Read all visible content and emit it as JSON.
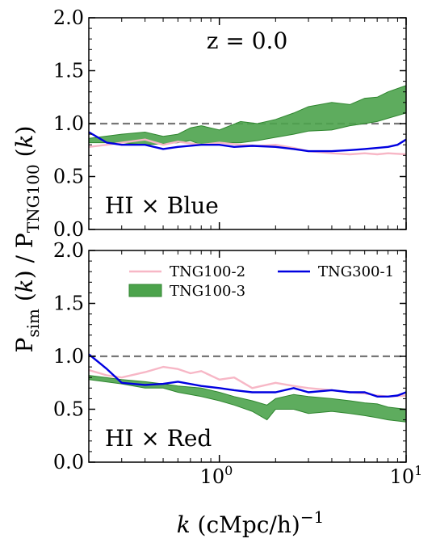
{
  "chart_data": [
    {
      "type": "line",
      "annotation": "z = 0.0",
      "panel_label": "HI × Blue",
      "x_scale": "log",
      "xlim": [
        0.2,
        10
      ],
      "ylim": [
        0,
        2.0
      ],
      "y_ticks": [
        "0.0",
        "0.5",
        "1.0",
        "1.5",
        "2.0"
      ],
      "reference_line": 1.0,
      "series": [
        {
          "name": "TNG100-2",
          "color": "#f7b7c6",
          "x": [
            0.2,
            0.25,
            0.3,
            0.4,
            0.5,
            0.6,
            0.8,
            1.0,
            1.3,
            1.6,
            2.0,
            2.5,
            3.0,
            4.0,
            5.0,
            6.0,
            7.0,
            8.0,
            10.0
          ],
          "y": [
            0.78,
            0.8,
            0.82,
            0.85,
            0.8,
            0.83,
            0.8,
            0.82,
            0.8,
            0.79,
            0.8,
            0.77,
            0.74,
            0.72,
            0.71,
            0.72,
            0.71,
            0.72,
            0.71
          ]
        },
        {
          "name": "TNG100-3",
          "color": "#3a9a3a",
          "type": "band",
          "x": [
            0.2,
            0.3,
            0.4,
            0.5,
            0.6,
            0.7,
            0.8,
            1.0,
            1.3,
            1.6,
            2.0,
            2.5,
            3.0,
            4.0,
            5.0,
            6.0,
            7.0,
            8.0,
            10.0
          ],
          "y_low": [
            0.82,
            0.82,
            0.8,
            0.81,
            0.82,
            0.84,
            0.8,
            0.82,
            0.82,
            0.84,
            0.87,
            0.9,
            0.93,
            0.94,
            0.98,
            1.0,
            1.02,
            1.05,
            1.1
          ],
          "y_high": [
            0.86,
            0.9,
            0.92,
            0.88,
            0.9,
            0.96,
            0.98,
            0.94,
            1.02,
            1.0,
            1.04,
            1.1,
            1.16,
            1.2,
            1.18,
            1.24,
            1.25,
            1.3,
            1.36
          ]
        },
        {
          "name": "TNG300-1",
          "color": "#0000e0",
          "x": [
            0.2,
            0.25,
            0.3,
            0.4,
            0.5,
            0.6,
            0.8,
            1.0,
            1.2,
            1.5,
            2.0,
            2.5,
            3.0,
            4.0,
            5.0,
            6.0,
            7.0,
            8.0,
            9.0,
            10.0
          ],
          "y": [
            0.92,
            0.82,
            0.8,
            0.8,
            0.76,
            0.78,
            0.8,
            0.8,
            0.78,
            0.79,
            0.78,
            0.76,
            0.74,
            0.74,
            0.75,
            0.76,
            0.77,
            0.78,
            0.8,
            0.85
          ]
        }
      ]
    },
    {
      "type": "line",
      "panel_label": "HI × Red",
      "x_scale": "log",
      "xlim": [
        0.2,
        10
      ],
      "ylim": [
        0,
        2.0
      ],
      "y_ticks": [
        "0.0",
        "0.5",
        "1.0",
        "1.5",
        "2.0"
      ],
      "x_ticks": [
        {
          "base": "10",
          "exp": "0"
        },
        {
          "base": "10",
          "exp": "1"
        }
      ],
      "reference_line": 1.0,
      "legend": {
        "placement": "top",
        "entries": [
          {
            "name": "TNG100-2",
            "color": "#f7b7c6",
            "kind": "line"
          },
          {
            "name": "TNG300-1",
            "color": "#0000e0",
            "kind": "line"
          },
          {
            "name": "TNG100-3",
            "color": "#3a9a3a",
            "kind": "band"
          }
        ]
      },
      "series": [
        {
          "name": "TNG100-2",
          "color": "#f7b7c6",
          "x": [
            0.2,
            0.25,
            0.3,
            0.4,
            0.5,
            0.6,
            0.7,
            0.8,
            1.0,
            1.2,
            1.5,
            2.0,
            2.5,
            3.0,
            4.0,
            5.0,
            6.0,
            7.0,
            8.0,
            10.0
          ],
          "y": [
            0.87,
            0.82,
            0.8,
            0.85,
            0.9,
            0.88,
            0.84,
            0.86,
            0.78,
            0.8,
            0.7,
            0.75,
            0.72,
            0.7,
            0.68,
            0.66,
            0.65,
            0.63,
            0.62,
            0.63
          ]
        },
        {
          "name": "TNG100-3",
          "color": "#3a9a3a",
          "type": "band",
          "x": [
            0.2,
            0.3,
            0.4,
            0.5,
            0.6,
            0.8,
            1.0,
            1.2,
            1.5,
            1.8,
            2.0,
            2.5,
            3.0,
            4.0,
            5.0,
            6.0,
            7.0,
            8.0,
            10.0
          ],
          "y_low": [
            0.78,
            0.74,
            0.7,
            0.7,
            0.66,
            0.62,
            0.58,
            0.54,
            0.48,
            0.4,
            0.5,
            0.5,
            0.46,
            0.48,
            0.46,
            0.44,
            0.42,
            0.4,
            0.38
          ],
          "y_high": [
            0.82,
            0.78,
            0.76,
            0.74,
            0.72,
            0.7,
            0.66,
            0.62,
            0.58,
            0.54,
            0.6,
            0.64,
            0.62,
            0.6,
            0.58,
            0.56,
            0.55,
            0.52,
            0.5
          ]
        },
        {
          "name": "TNG300-1",
          "color": "#0000e0",
          "x": [
            0.2,
            0.25,
            0.3,
            0.4,
            0.5,
            0.6,
            0.8,
            1.0,
            1.2,
            1.5,
            2.0,
            2.5,
            3.0,
            4.0,
            5.0,
            6.0,
            7.0,
            8.0,
            9.0,
            10.0
          ],
          "y": [
            1.02,
            0.88,
            0.75,
            0.73,
            0.74,
            0.76,
            0.72,
            0.7,
            0.68,
            0.66,
            0.66,
            0.7,
            0.66,
            0.68,
            0.66,
            0.66,
            0.62,
            0.62,
            0.63,
            0.66
          ]
        }
      ]
    }
  ],
  "ylabel": {
    "main": "P",
    "sub_sim": "sim",
    "k": "k",
    "sep": " / P",
    "sub_tng": "TNG100"
  },
  "xlabel": {
    "k": "k",
    "unit": " (cMpc/h)",
    "exp": "−1"
  }
}
